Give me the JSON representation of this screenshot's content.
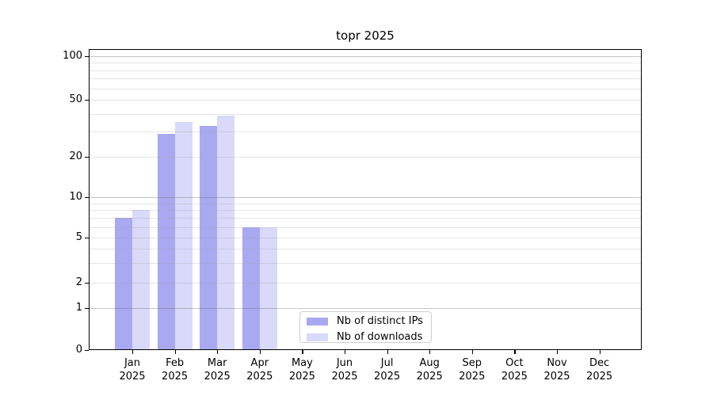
{
  "chart_data": {
    "type": "bar",
    "title": "topr 2025",
    "x_months": [
      "Jan",
      "Feb",
      "Mar",
      "Apr",
      "May",
      "Jun",
      "Jul",
      "Aug",
      "Sep",
      "Oct",
      "Nov",
      "Dec"
    ],
    "x_year": "2025",
    "series": [
      {
        "name": "Nb of distinct IPs",
        "color": "#a9a9f2",
        "values": [
          7,
          29,
          33,
          6,
          0,
          0,
          0,
          0,
          0,
          0,
          0,
          0
        ]
      },
      {
        "name": "Nb of downloads",
        "color": "#d9d9f9",
        "values": [
          8,
          35,
          39,
          6,
          0,
          0,
          0,
          0,
          0,
          0,
          0,
          0
        ]
      }
    ],
    "y_ticks": [
      100,
      50,
      20,
      10,
      5,
      2,
      1,
      0
    ],
    "y_minor_gridlines": [
      2,
      3,
      4,
      5,
      6,
      7,
      8,
      9,
      20,
      30,
      40,
      50,
      60,
      70,
      80,
      90
    ],
    "y_major_gridlines": [
      1,
      10,
      100
    ],
    "y_scale": "symlog",
    "ylim": [
      0,
      100
    ],
    "grid": "horizontal minor+major, drawn over bars",
    "legend_position": "lower center inside plot"
  }
}
